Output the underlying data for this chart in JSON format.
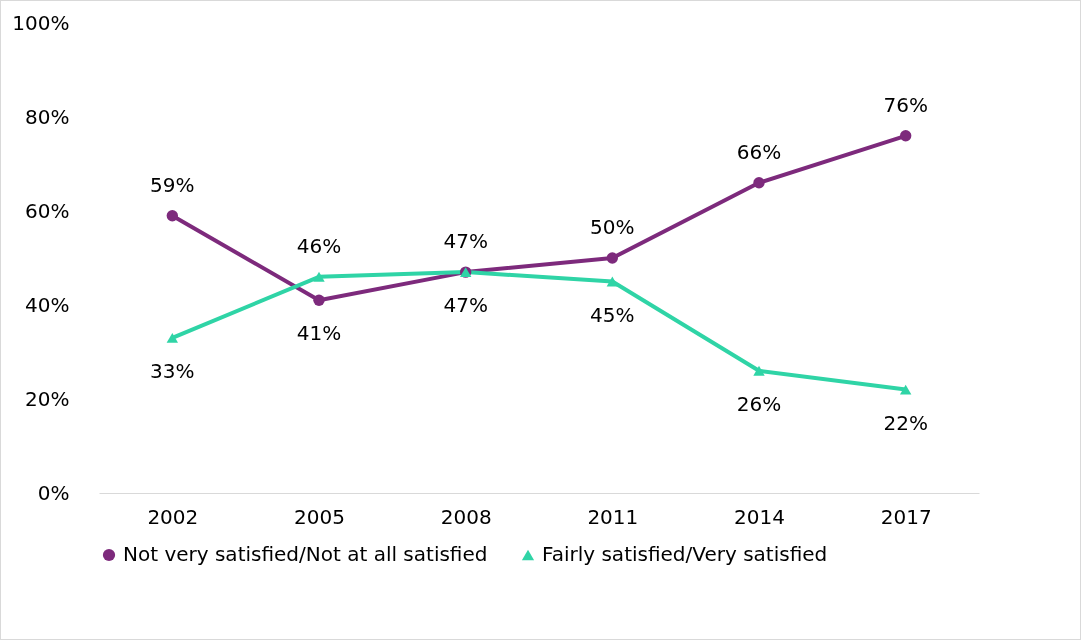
{
  "chart_data": {
    "type": "line",
    "categories": [
      "2002",
      "2005",
      "2008",
      "2011",
      "2014",
      "2017"
    ],
    "series": [
      {
        "name": "Not very satisfied/Not at all satisfied",
        "color": "#7d2a7c",
        "marker": "circle",
        "values": [
          59,
          41,
          47,
          50,
          66,
          76
        ],
        "value_labels": [
          "59%",
          "41%",
          "47%",
          "50%",
          "66%",
          "76%"
        ]
      },
      {
        "name": "Fairly satisfied/Very satisfied",
        "color": "#2fd4a6",
        "marker": "triangle",
        "values": [
          33,
          46,
          47,
          45,
          26,
          22
        ],
        "value_labels": [
          "33%",
          "46%",
          "47%",
          "45%",
          "26%",
          "22%"
        ]
      }
    ],
    "ylim": [
      0,
      100
    ],
    "yticks": [
      {
        "value": 0,
        "label": "0%"
      },
      {
        "value": 20,
        "label": "20%"
      },
      {
        "value": 40,
        "label": "40%"
      },
      {
        "value": 60,
        "label": "60%"
      },
      {
        "value": 80,
        "label": "80%"
      },
      {
        "value": 100,
        "label": "100%"
      }
    ],
    "grid": false,
    "legend": "bottom"
  }
}
